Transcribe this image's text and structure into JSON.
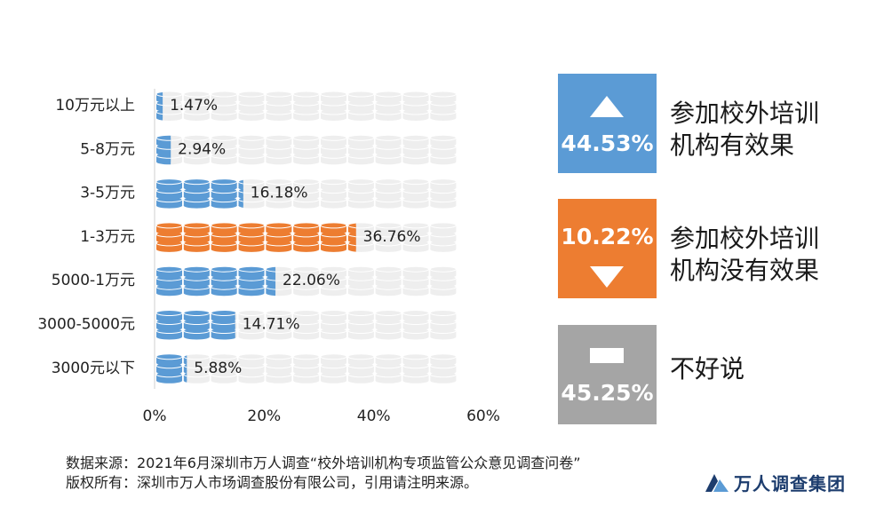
{
  "chart_data": {
    "type": "bar",
    "orientation": "horizontal",
    "categories": [
      "10万元以上",
      "5-8万元",
      "3-5万元",
      "1-3万元",
      "5000-1万元",
      "3000-5000元",
      "3000元以下"
    ],
    "values": [
      1.47,
      2.94,
      16.18,
      36.76,
      22.06,
      14.71,
      5.88
    ],
    "value_labels": [
      "1.47%",
      "2.94%",
      "16.18%",
      "36.76%",
      "22.06%",
      "14.71%",
      "5.88%"
    ],
    "highlight_category": "1-3万元",
    "xlim": [
      0,
      60
    ],
    "x_ticks": [
      "0%",
      "20%",
      "40%",
      "60%"
    ],
    "unit_per_icon": 5,
    "icons_per_row": 11,
    "colors": {
      "normal": "#5b9bd5",
      "highlight": "#ed7d31",
      "background_icon": "#eeeeee"
    }
  },
  "summary_boxes": [
    {
      "value": "44.53%",
      "label_line1": "参加校外培训",
      "label_line2": "机构有效果",
      "color": "#5b9bd5",
      "icon": "triangle-up-icon"
    },
    {
      "value": "10.22%",
      "label_line1": "参加校外培训",
      "label_line2": "机构没有效果",
      "color": "#ed7d31",
      "icon": "triangle-down-icon"
    },
    {
      "value": "45.25%",
      "label_line1": "不好说",
      "label_line2": "",
      "color": "#a5a5a5",
      "icon": "dash-icon"
    }
  ],
  "footer": {
    "source": "数据来源：2021年6月深圳市万人调查“校外培训机构专项监管公众意见调查问卷”",
    "copyright": "版权所有：深圳市万人市场调查股份有限公司，引用请注明来源。"
  },
  "logo": {
    "text": "万人调查集团",
    "color": "#1d3d6e"
  }
}
